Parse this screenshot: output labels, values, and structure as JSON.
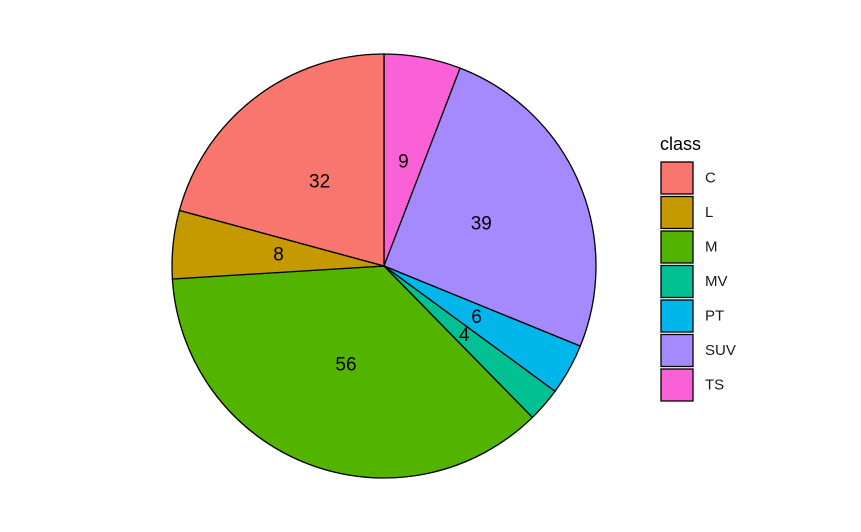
{
  "chart_data": {
    "type": "pie",
    "categories": [
      "C",
      "L",
      "M",
      "MV",
      "PT",
      "SUV",
      "TS"
    ],
    "values": [
      32,
      8,
      56,
      4,
      6,
      39,
      9
    ],
    "colors": [
      "#F8766D",
      "#C49A00",
      "#53B400",
      "#00C094",
      "#00B6EB",
      "#A58AFF",
      "#FB61D7"
    ],
    "legend_title": "class",
    "legend_position": "right",
    "direction": "clockwise from top, reversed category order"
  }
}
